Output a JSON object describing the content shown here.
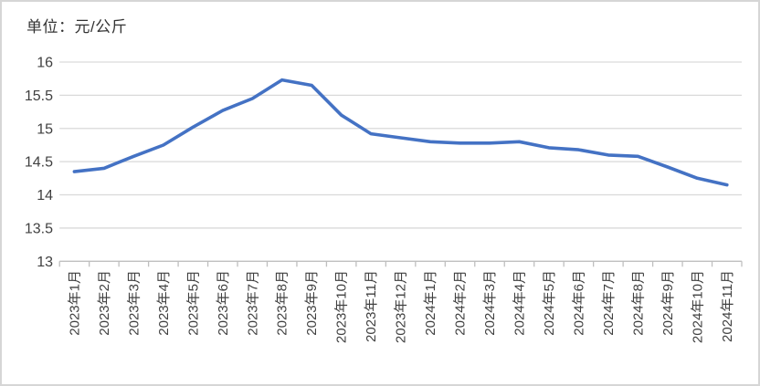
{
  "title": "单位：元/公斤",
  "colors": {
    "line": "#4472C4",
    "gridline": "#D9D9D9",
    "axis": "#BFBFBF",
    "tick": "#BFBFBF",
    "label": "#404040",
    "title": "#333333",
    "background": "#FFFFFF",
    "frame_border": "#D6D6D6"
  },
  "chart_data": {
    "type": "line",
    "title": "单位：元/公斤",
    "xlabel": "",
    "ylabel": "",
    "categories": [
      "2023年1月",
      "2023年2月",
      "2023年3月",
      "2023年4月",
      "2023年5月",
      "2023年6月",
      "2023年7月",
      "2023年8月",
      "2023年9月",
      "2023年10月",
      "2023年11月",
      "2023年12月",
      "2024年1月",
      "2024年2月",
      "2024年3月",
      "2024年4月",
      "2024年5月",
      "2024年6月",
      "2024年7月",
      "2024年8月",
      "2024年9月",
      "2024年10月",
      "2024年11月"
    ],
    "values": [
      14.35,
      14.4,
      14.58,
      14.75,
      15.02,
      15.27,
      15.45,
      15.73,
      15.65,
      15.2,
      14.92,
      14.86,
      14.8,
      14.78,
      14.78,
      14.8,
      14.71,
      14.68,
      14.6,
      14.58,
      14.42,
      14.25,
      14.15
    ],
    "ylim": [
      13,
      16
    ],
    "ytick_step": 0.5,
    "ytick_labels": [
      "16",
      "15.5",
      "15",
      "14.5",
      "14",
      "13.5",
      "13"
    ],
    "grid": true,
    "legend": "none",
    "x_labels_rotated_degrees": 90
  }
}
